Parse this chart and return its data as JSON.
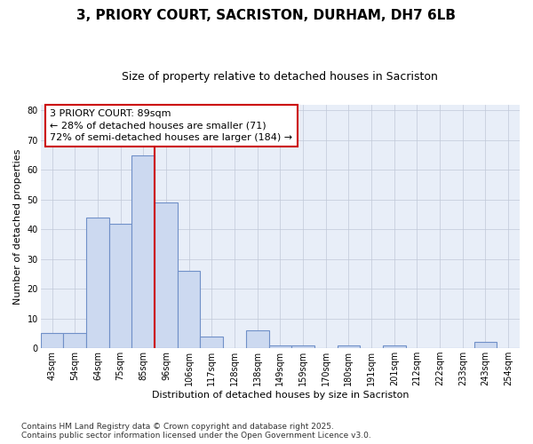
{
  "title_line1": "3, PRIORY COURT, SACRISTON, DURHAM, DH7 6LB",
  "title_line2": "Size of property relative to detached houses in Sacriston",
  "xlabel": "Distribution of detached houses by size in Sacriston",
  "ylabel": "Number of detached properties",
  "footer_line1": "Contains HM Land Registry data © Crown copyright and database right 2025.",
  "footer_line2": "Contains public sector information licensed under the Open Government Licence v3.0.",
  "annotation_line1": "3 PRIORY COURT: 89sqm",
  "annotation_line2": "← 28% of detached houses are smaller (71)",
  "annotation_line3": "72% of semi-detached houses are larger (184) →",
  "categories": [
    "43sqm",
    "54sqm",
    "64sqm",
    "75sqm",
    "85sqm",
    "96sqm",
    "106sqm",
    "117sqm",
    "128sqm",
    "138sqm",
    "149sqm",
    "159sqm",
    "170sqm",
    "180sqm",
    "191sqm",
    "201sqm",
    "212sqm",
    "222sqm",
    "233sqm",
    "243sqm",
    "254sqm"
  ],
  "values": [
    5,
    5,
    44,
    42,
    65,
    49,
    26,
    4,
    0,
    6,
    1,
    1,
    0,
    1,
    0,
    1,
    0,
    0,
    0,
    2,
    0
  ],
  "bar_color": "#ccd9f0",
  "bar_edge_color": "#7090c8",
  "vline_color": "#cc0000",
  "annotation_box_edge_color": "#cc0000",
  "background_color": "#ffffff",
  "plot_bg_color": "#e8eef8",
  "grid_color": "#c0c8d8",
  "ylim": [
    0,
    82
  ],
  "yticks": [
    0,
    10,
    20,
    30,
    40,
    50,
    60,
    70,
    80
  ],
  "title_fontsize": 11,
  "subtitle_fontsize": 9,
  "axis_label_fontsize": 8,
  "tick_fontsize": 7,
  "annotation_fontsize": 8,
  "footer_fontsize": 6.5
}
